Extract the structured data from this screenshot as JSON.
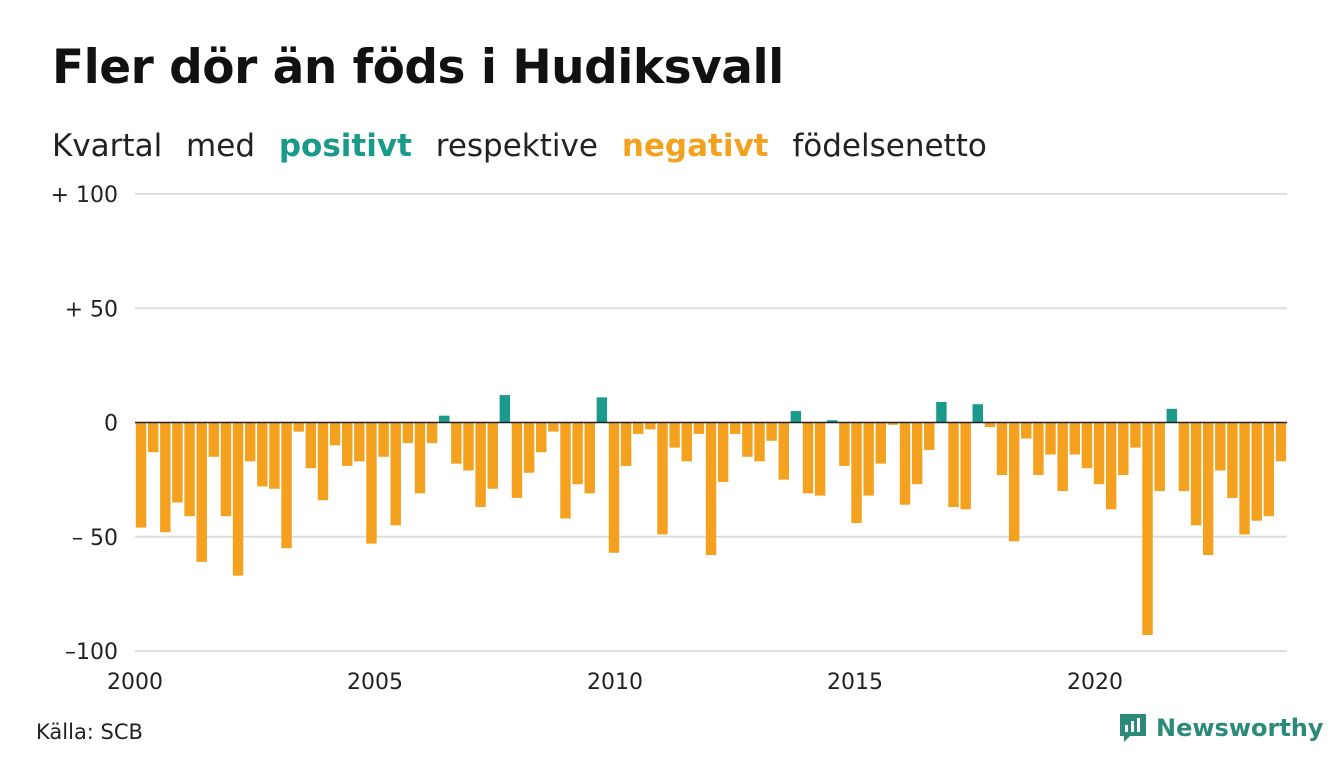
{
  "title": "Fler dör än föds i Hudiksvall",
  "subtitle": {
    "part1": "Kvartal",
    "part2": "med",
    "positive_word": "positivt",
    "part3": "respektive",
    "negative_word": "negativt",
    "part4": "födelsenetto"
  },
  "source": "Källa: SCB",
  "brand": {
    "name": "Newsworthy",
    "icon": "newsworthy-logo-icon"
  },
  "colors": {
    "positive": "#1a9a8a",
    "negative": "#f4a11f",
    "grid": "#dddddd",
    "zero_line": "#222222",
    "brand": "#2b8a78"
  },
  "chart_data": {
    "type": "bar",
    "ylim": [
      -100,
      100
    ],
    "yticks": [
      {
        "value": 100,
        "label": "+ 100"
      },
      {
        "value": 50,
        "label": "+  50"
      },
      {
        "value": 0,
        "label": "0"
      },
      {
        "value": -50,
        "label": "– 50"
      },
      {
        "value": -100,
        "label": "–100"
      }
    ],
    "xticks": [
      {
        "value": 2000,
        "label": "2000"
      },
      {
        "value": 2005,
        "label": "2005"
      },
      {
        "value": 2010,
        "label": "2010"
      },
      {
        "value": 2015,
        "label": "2015"
      },
      {
        "value": 2020,
        "label": "2020"
      }
    ],
    "x_start": 2000,
    "x_end": 2024,
    "grid": true,
    "period": "quarter",
    "values": [
      -46,
      -13,
      -48,
      -35,
      -41,
      -61,
      -15,
      -41,
      -67,
      -17,
      -28,
      -29,
      -55,
      -4,
      -20,
      -34,
      -10,
      -19,
      -17,
      -53,
      -15,
      -45,
      -9,
      -31,
      -9,
      3,
      -18,
      -21,
      -37,
      -29,
      12,
      -33,
      -22,
      -13,
      -4,
      -42,
      -27,
      -31,
      11,
      -57,
      -19,
      -5,
      -3,
      -49,
      -11,
      -17,
      -5,
      -58,
      -26,
      -5,
      -15,
      -17,
      -8,
      -25,
      5,
      -31,
      -32,
      1,
      -19,
      -44,
      -32,
      -18,
      -1,
      -36,
      -27,
      -12,
      9,
      -37,
      -38,
      8,
      -2,
      -23,
      -52,
      -7,
      -23,
      -14,
      -30,
      -14,
      -20,
      -27,
      -38,
      -23,
      -11,
      -93,
      -30,
      6,
      -30,
      -45,
      -58,
      -21,
      -33,
      -49,
      -43,
      -41,
      -17
    ]
  }
}
